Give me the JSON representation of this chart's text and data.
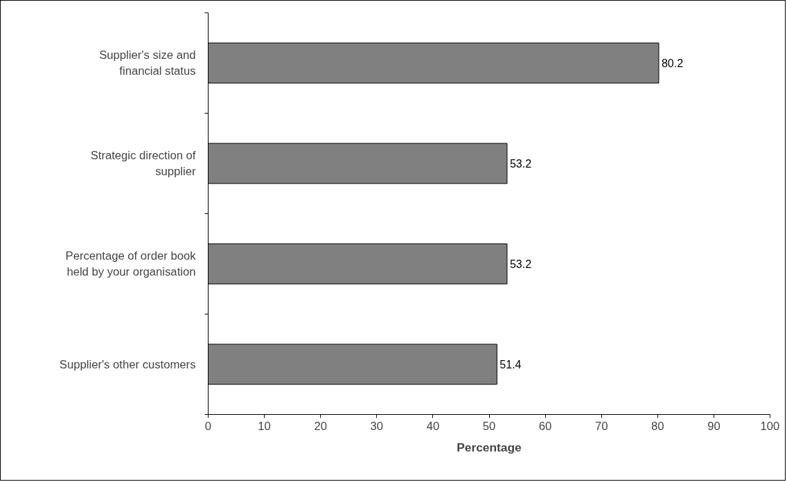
{
  "chart_data": {
    "type": "bar",
    "orientation": "horizontal",
    "categories": [
      "Supplier's size and\nfinancial status",
      "Strategic direction of\nsupplier",
      "Percentage of order book\nheld by your organisation",
      "Supplier's other customers"
    ],
    "values": [
      80.2,
      53.2,
      53.2,
      51.4
    ],
    "color": "#808080",
    "xlabel": "Percentage",
    "xlim": [
      0,
      100
    ],
    "xticks": [
      0,
      10,
      20,
      30,
      40,
      50,
      60,
      70,
      80,
      90,
      100
    ],
    "data_labels": true,
    "grid": false
  }
}
